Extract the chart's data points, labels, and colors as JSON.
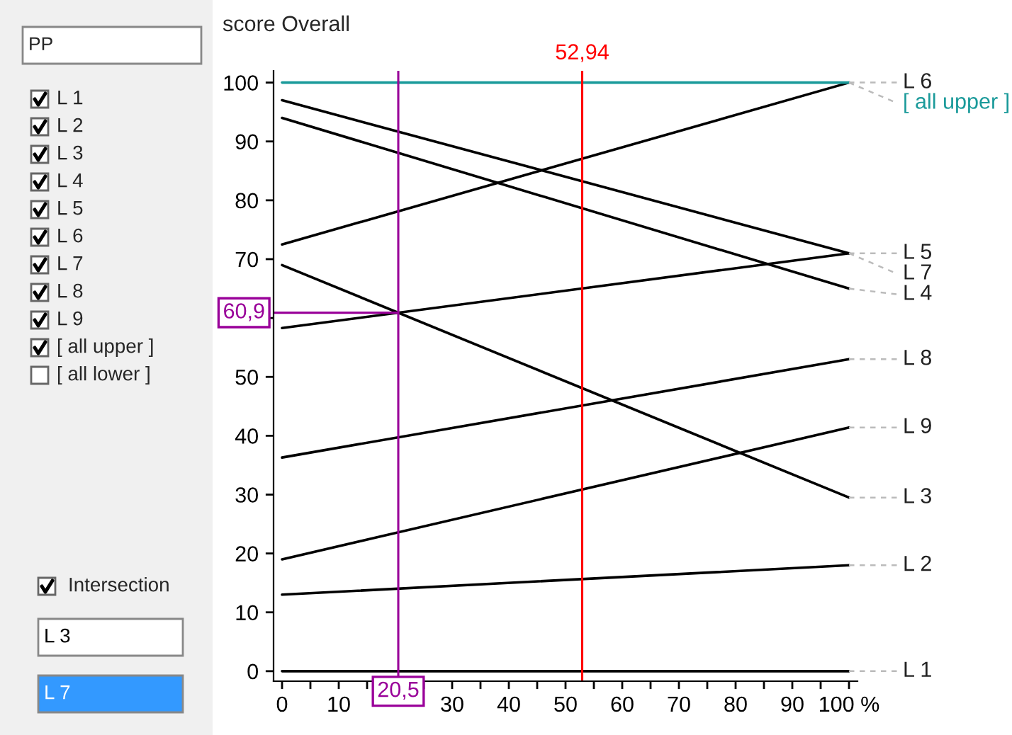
{
  "chart_data": {
    "type": "line",
    "ylabel": "score Overall",
    "x": [
      0,
      100
    ],
    "xlim": [
      -1.5,
      101.5
    ],
    "ylim": [
      -1.7,
      102
    ],
    "xticks": [
      0,
      {
        "value": 5,
        "label": null
      },
      10,
      {
        "value": 15,
        "label": null
      },
      {
        "value": 20,
        "label": null
      },
      {
        "value": 25,
        "label": null
      },
      30,
      {
        "value": 35,
        "label": null
      },
      40,
      {
        "value": 45,
        "label": null
      },
      50,
      {
        "value": 55,
        "label": null
      },
      60,
      {
        "value": 65,
        "label": null
      },
      70,
      {
        "value": 75,
        "label": null
      },
      80,
      {
        "value": 85,
        "label": null
      },
      90,
      {
        "value": 95,
        "label": null
      },
      {
        "value": 100,
        "label": "100 %"
      }
    ],
    "yticks": [
      0,
      10,
      20,
      30,
      40,
      50,
      {
        "value": 60,
        "label": null
      },
      70,
      80,
      90,
      100
    ],
    "grid": false,
    "legend": false,
    "marker": "none",
    "line_style": "solid",
    "series": [
      {
        "name": "L 1",
        "color": "#000000",
        "values": [
          0,
          0
        ]
      },
      {
        "name": "L 2",
        "color": "#000000",
        "values": [
          13,
          18
        ]
      },
      {
        "name": "L 3",
        "color": "#000000",
        "values": [
          69,
          29.5
        ]
      },
      {
        "name": "L 4",
        "color": "#000000",
        "values": [
          94,
          65
        ]
      },
      {
        "name": "L 5",
        "color": "#000000",
        "values": [
          97,
          71
        ]
      },
      {
        "name": "L 6",
        "color": "#000000",
        "values": [
          72.5,
          100
        ]
      },
      {
        "name": "L 7",
        "color": "#000000",
        "values": [
          58.3,
          71
        ]
      },
      {
        "name": "L 8",
        "color": "#000000",
        "values": [
          36.3,
          53
        ]
      },
      {
        "name": "L 9",
        "color": "#000000",
        "values": [
          19,
          41.4
        ]
      },
      {
        "name": "[ all upper ]",
        "color": "#1a9a9a",
        "values": [
          100,
          100
        ]
      }
    ],
    "ref_lines": [
      {
        "axis": "x",
        "value": 52.94,
        "label": "52,94",
        "color": "#ff0000"
      },
      {
        "axis": "x",
        "value": 20.5,
        "label": "20,5",
        "color": "#990099"
      },
      {
        "axis": "y",
        "value": 60.9,
        "label": "60,9",
        "color": "#990099"
      }
    ],
    "annotations": [
      "PP",
      "L 1",
      "L 2",
      "L 3",
      "L 4",
      "L 5",
      "L 6",
      "L 7",
      "L 8",
      "L 9",
      "[ all upper ]",
      "[ all lower ]",
      "Intersection",
      "L 3",
      "L 7"
    ]
  }
}
